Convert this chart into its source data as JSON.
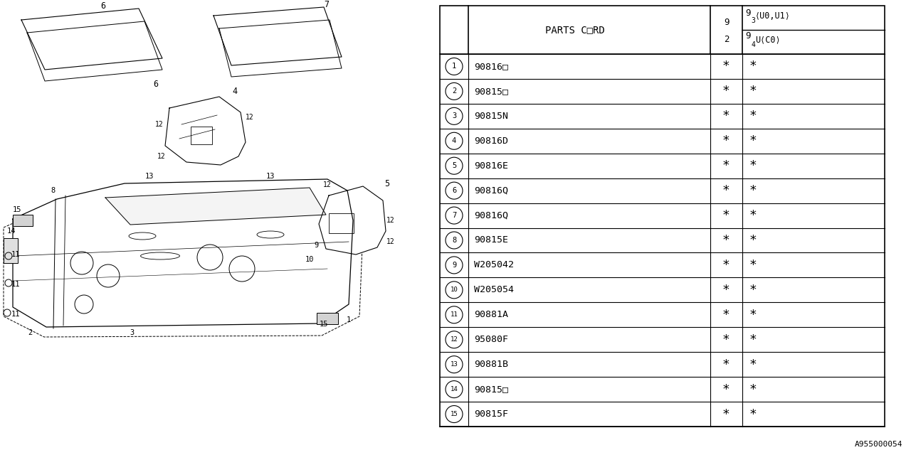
{
  "bg_color": "#ffffff",
  "rows": [
    {
      "num": "1",
      "code": "90816□"
    },
    {
      "num": "2",
      "code": "90815□"
    },
    {
      "num": "3",
      "code": "90815N"
    },
    {
      "num": "4",
      "code": "90816D"
    },
    {
      "num": "5",
      "code": "90816E"
    },
    {
      "num": "6",
      "code": "90816Q"
    },
    {
      "num": "7",
      "code": "90816Q"
    },
    {
      "num": "8",
      "code": "90815E"
    },
    {
      "num": "9",
      "code": "W205042"
    },
    {
      "num": "10",
      "code": "W205054"
    },
    {
      "num": "11",
      "code": "90881A"
    },
    {
      "num": "12",
      "code": "95080F"
    },
    {
      "num": "13",
      "code": "90881B"
    },
    {
      "num": "14",
      "code": "90815□"
    },
    {
      "num": "15",
      "code": "90815F"
    }
  ],
  "footer_code": "A955000054"
}
